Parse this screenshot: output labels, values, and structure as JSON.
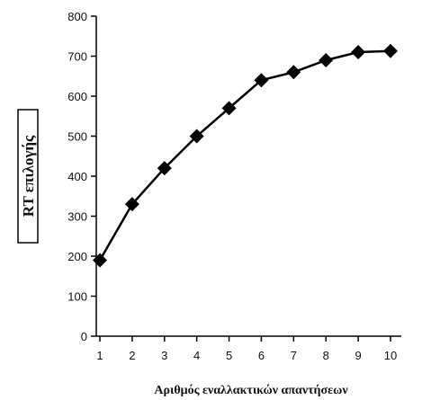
{
  "chart_data": {
    "type": "line",
    "x": [
      1,
      2,
      3,
      4,
      5,
      6,
      7,
      8,
      9,
      10
    ],
    "series": [
      {
        "values": [
          190,
          330,
          420,
          500,
          570,
          640,
          660,
          690,
          710,
          713
        ]
      }
    ],
    "xlabel": "Αριθμός εναλλακτικών απαντήσεων",
    "ylabel": "RT επιλογής",
    "xlim": [
      1,
      10
    ],
    "ylim": [
      0,
      800
    ],
    "yticks": [
      0,
      100,
      200,
      300,
      400,
      500,
      600,
      700,
      800
    ],
    "xticks": [
      1,
      2,
      3,
      4,
      5,
      6,
      7,
      8,
      9,
      10
    ],
    "grid": false,
    "marker": "diamond",
    "colors": {
      "line": "#000000",
      "marker": "#000000"
    }
  }
}
